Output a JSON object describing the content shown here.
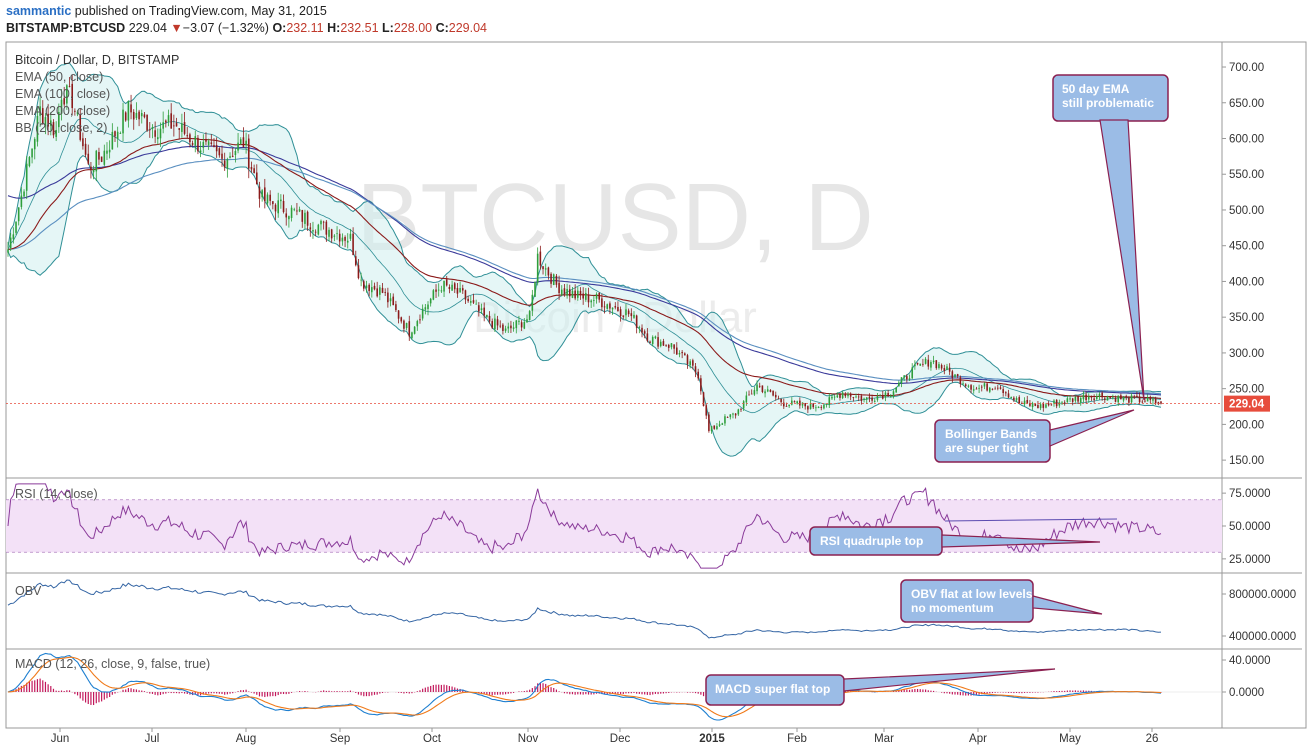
{
  "header": {
    "author": "sammantic",
    "published_text": "published on TradingView.com, May 31, 2015",
    "symbol": "BITSTAMP:BTCUSD",
    "last": "229.04",
    "change_arrow": "▼",
    "change": "−3.07 (−1.32%)",
    "o_label": "O:",
    "o_value": "232.11",
    "h_label": "H:",
    "h_value": "232.51",
    "l_label": "L:",
    "l_value": "228.00",
    "c_label": "C:",
    "c_value": "229.04"
  },
  "legend": {
    "title": "Bitcoin / Dollar, D, BITSTAMP",
    "ema50": "EMA (50, close)",
    "ema100": "EMA (100, close)",
    "ema200": "EMA (200, close)",
    "bb": "BB (20, close, 2)",
    "rsi": "RSI (14, close)",
    "obv": "OBV",
    "macd": "MACD (12, 26, close, 9, false, true)"
  },
  "watermark": {
    "main": "BTCUSD, D",
    "sub": "Bitcoin / Dollar"
  },
  "callouts": {
    "ema": [
      "50 day EMA",
      "still problematic"
    ],
    "bb": [
      "Bollinger Bands",
      "are super tight"
    ],
    "rsi": [
      "RSI quadruple top"
    ],
    "obv": [
      "OBV flat at low levels",
      "no momentum"
    ],
    "macd": [
      "MACD super flat top"
    ]
  },
  "price_badge": "229.04",
  "colors": {
    "bull": "#2e9e3b",
    "bear": "#8b1a1a",
    "ema50": "#8b1a1a",
    "ema100": "#5a8fc0",
    "ema200": "#3a3a9a",
    "bb": "#2f8f96",
    "bb_fill": "#cfeeee",
    "rsi": "#8a3b9a",
    "rsi_band": "#f3e1f7",
    "obv": "#3465a4",
    "macd": "#1e7fd0",
    "signal": "#f07a1a",
    "hist": "#c2185b",
    "callout": "#9bbce6",
    "callout_border": "#8b2050",
    "badge": "#e74c3c"
  },
  "chart_data": [
    {
      "type": "candlestick",
      "title": "Bitcoin / Dollar, D, BITSTAMP",
      "ylim": [
        125,
        735
      ],
      "y_ticks": [
        "150.00",
        "200.00",
        "250.00",
        "300.00",
        "350.00",
        "400.00",
        "450.00",
        "500.00",
        "550.00",
        "600.00",
        "650.00",
        "700.00"
      ],
      "x_labels": [
        "Jun",
        "Jul",
        "Aug",
        "Sep",
        "Oct",
        "Nov",
        "Dec",
        "2015",
        "Feb",
        "Mar",
        "Apr",
        "May",
        "26"
      ],
      "anchors_close": [
        [
          0,
          445
        ],
        [
          5,
          520
        ],
        [
          12,
          640
        ],
        [
          18,
          610
        ],
        [
          20,
          665
        ],
        [
          24,
          655
        ],
        [
          30,
          560
        ],
        [
          35,
          575
        ],
        [
          45,
          640
        ],
        [
          55,
          615
        ],
        [
          62,
          620
        ],
        [
          72,
          590
        ],
        [
          80,
          570
        ],
        [
          88,
          595
        ],
        [
          95,
          515
        ],
        [
          105,
          500
        ],
        [
          115,
          480
        ],
        [
          128,
          460
        ],
        [
          132,
          400
        ],
        [
          140,
          385
        ],
        [
          150,
          330
        ],
        [
          155,
          360
        ],
        [
          162,
          395
        ],
        [
          170,
          380
        ],
        [
          178,
          350
        ],
        [
          186,
          330
        ],
        [
          195,
          350
        ],
        [
          198,
          435
        ],
        [
          205,
          395
        ],
        [
          212,
          380
        ],
        [
          220,
          375
        ],
        [
          232,
          355
        ],
        [
          240,
          320
        ],
        [
          248,
          310
        ],
        [
          258,
          270
        ],
        [
          262,
          190
        ],
        [
          267,
          205
        ],
        [
          272,
          215
        ],
        [
          280,
          255
        ],
        [
          290,
          230
        ],
        [
          300,
          225
        ],
        [
          306,
          230
        ],
        [
          312,
          245
        ],
        [
          320,
          235
        ],
        [
          330,
          245
        ],
        [
          338,
          275
        ],
        [
          345,
          290
        ],
        [
          355,
          265
        ],
        [
          362,
          250
        ],
        [
          370,
          255
        ],
        [
          378,
          230
        ],
        [
          386,
          225
        ],
        [
          392,
          230
        ],
        [
          398,
          235
        ],
        [
          404,
          240
        ],
        [
          410,
          240
        ],
        [
          416,
          236
        ],
        [
          424,
          234
        ],
        [
          431,
          229
        ]
      ]
    },
    {
      "type": "line",
      "title": "RSI (14, close)",
      "ylim": [
        15,
        85
      ],
      "y_ticks": [
        "25.0000",
        "50.0000",
        "75.0000"
      ],
      "band": [
        30,
        70
      ]
    },
    {
      "type": "line",
      "title": "OBV",
      "y_ticks": [
        "400000.0000",
        "800000.0000"
      ]
    },
    {
      "type": "line",
      "title": "MACD (12, 26, close, 9, false, true)",
      "y_ticks": [
        "0.0000",
        "40.0000"
      ]
    }
  ]
}
